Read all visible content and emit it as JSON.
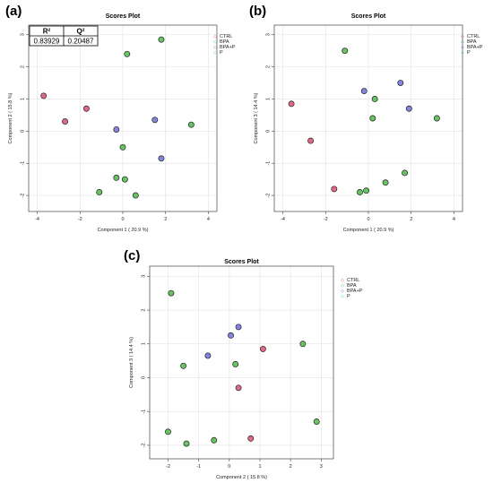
{
  "chart_data": [
    {
      "panel": "(a)",
      "type": "scatter",
      "title": "Scores Plot",
      "xlabel": "Component 1 ( 20.9 %)",
      "ylabel": "Component 2 ( 15.8 %)",
      "xlim": [
        -4.4,
        4.4
      ],
      "ylim": [
        -2.5,
        3.3
      ],
      "xticks": [
        -4,
        -2,
        0,
        2,
        4
      ],
      "yticks": [
        -2,
        -1,
        0,
        1,
        2,
        3
      ],
      "grid": true,
      "legend": [
        "CTRL",
        "BPA",
        "BPA+P",
        "P"
      ],
      "legend_position": "top-right",
      "table": {
        "headers": [
          "R²",
          "Q²"
        ],
        "values": [
          "0.83929",
          "0.20487"
        ]
      },
      "series": [
        {
          "name": "CTRL",
          "color": "#d85070",
          "points": [
            [
              -3.7,
              1.1
            ],
            [
              -2.7,
              0.3
            ],
            [
              -1.7,
              0.7
            ]
          ]
        },
        {
          "name": "BPA",
          "color": "#4db848",
          "points": [
            [
              0.0,
              -0.5
            ],
            [
              -0.3,
              -1.45
            ],
            [
              0.1,
              -1.5
            ],
            [
              -1.1,
              -1.9
            ],
            [
              0.6,
              -2.0
            ],
            [
              0.2,
              2.4
            ],
            [
              1.8,
              2.85
            ],
            [
              3.2,
              0.2
            ]
          ]
        },
        {
          "name": "BPA+P",
          "color": "#6f6fd8",
          "points": [
            [
              -0.3,
              0.05
            ],
            [
              1.5,
              0.35
            ],
            [
              1.8,
              -0.85
            ]
          ]
        }
      ]
    },
    {
      "panel": "(b)",
      "type": "scatter",
      "title": "Scores Plot",
      "xlabel": "Component 1 ( 20.9 %)",
      "ylabel": "Component 3 ( 14.4 %)",
      "xlim": [
        -4.4,
        4.4
      ],
      "ylim": [
        -2.5,
        3.3
      ],
      "xticks": [
        -4,
        -2,
        0,
        2,
        4
      ],
      "yticks": [
        -2,
        -1,
        0,
        1,
        2,
        3
      ],
      "grid": true,
      "legend": [
        "CTRL",
        "BPA",
        "BPA+P",
        "P"
      ],
      "legend_position": "top-right",
      "series": [
        {
          "name": "CTRL",
          "color": "#d85070",
          "points": [
            [
              -3.6,
              0.85
            ],
            [
              -2.7,
              -0.3
            ],
            [
              -1.6,
              -1.8
            ]
          ]
        },
        {
          "name": "BPA",
          "color": "#4db848",
          "points": [
            [
              -1.1,
              2.5
            ],
            [
              0.3,
              1.0
            ],
            [
              0.2,
              0.4
            ],
            [
              -0.4,
              -1.9
            ],
            [
              -0.1,
              -1.85
            ],
            [
              0.8,
              -1.6
            ],
            [
              1.7,
              -1.3
            ],
            [
              3.2,
              0.4
            ]
          ]
        },
        {
          "name": "BPA+P",
          "color": "#6f6fd8",
          "points": [
            [
              -0.2,
              1.25
            ],
            [
              1.5,
              1.5
            ],
            [
              1.9,
              0.7
            ]
          ]
        }
      ]
    },
    {
      "panel": "(c)",
      "type": "scatter",
      "title": "Scores Plot",
      "xlabel": "Component 2 ( 15.8 %)",
      "ylabel": "Component 3 ( 14.4 %)",
      "xlim": [
        -2.6,
        3.4
      ],
      "ylim": [
        -2.4,
        3.3
      ],
      "xticks": [
        -2,
        -1,
        0,
        1,
        2,
        3
      ],
      "yticks": [
        -2,
        -1,
        0,
        1,
        2,
        3
      ],
      "grid": true,
      "legend": [
        "CTRL",
        "BPA",
        "BPA+P",
        "P"
      ],
      "legend_position": "top-center",
      "series": [
        {
          "name": "CTRL",
          "color": "#d85070",
          "points": [
            [
              1.1,
              0.85
            ],
            [
              0.3,
              -0.3
            ],
            [
              0.7,
              -1.8
            ]
          ]
        },
        {
          "name": "BPA",
          "color": "#4db848",
          "points": [
            [
              -1.9,
              2.5
            ],
            [
              -1.5,
              0.35
            ],
            [
              0.2,
              0.4
            ],
            [
              2.4,
              1.0
            ],
            [
              2.85,
              -1.3
            ],
            [
              -2.0,
              -1.6
            ],
            [
              -1.4,
              -1.95
            ],
            [
              -0.5,
              -1.85
            ]
          ]
        },
        {
          "name": "BPA+P",
          "color": "#6f6fd8",
          "points": [
            [
              0.3,
              1.5
            ],
            [
              0.05,
              1.25
            ],
            [
              -0.7,
              0.65
            ]
          ]
        }
      ]
    }
  ],
  "legend_colors": {
    "CTRL": "#d85070",
    "BPA": "#4db848",
    "BPA+P": "#6f6fd8",
    "P": "#3fc7d6"
  }
}
